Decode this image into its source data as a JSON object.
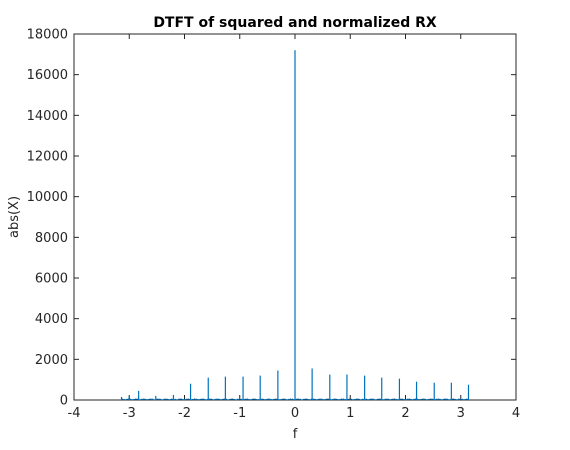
{
  "chart_data": {
    "type": "line",
    "title": "DTFT of squared and normalized RX",
    "xlabel": "f",
    "ylabel": "abs(X)",
    "xlim": [
      -4,
      4
    ],
    "ylim": [
      0,
      18000
    ],
    "x_ticks": [
      -4,
      -3,
      -2,
      -1,
      0,
      1,
      2,
      3,
      4
    ],
    "y_ticks": [
      0,
      2000,
      4000,
      6000,
      8000,
      10000,
      12000,
      14000,
      16000,
      18000
    ],
    "x_tick_labels": [
      "-4",
      "-3",
      "-2",
      "-1",
      "0",
      "1",
      "2",
      "3",
      "4"
    ],
    "y_tick_labels": [
      "0",
      "2000",
      "4000",
      "6000",
      "8000",
      "10000",
      "12000",
      "14000",
      "16000",
      "18000"
    ],
    "grid": false,
    "series_color": "#0072BD",
    "series": [
      {
        "x": [
          -3.14,
          -3.0,
          -2.83,
          -2.52,
          -2.2,
          -1.89,
          -1.57,
          -1.26,
          -0.94,
          -0.63,
          -0.31,
          0.0,
          0.31,
          0.63,
          0.94,
          1.26,
          1.57,
          1.89,
          2.2,
          2.52,
          2.83,
          3.14
        ],
        "values": [
          150,
          200,
          450,
          200,
          250,
          800,
          1100,
          1150,
          1150,
          1200,
          1450,
          17200,
          1550,
          1250,
          1250,
          1200,
          1100,
          1050,
          900,
          850,
          850,
          750
        ]
      }
    ]
  }
}
